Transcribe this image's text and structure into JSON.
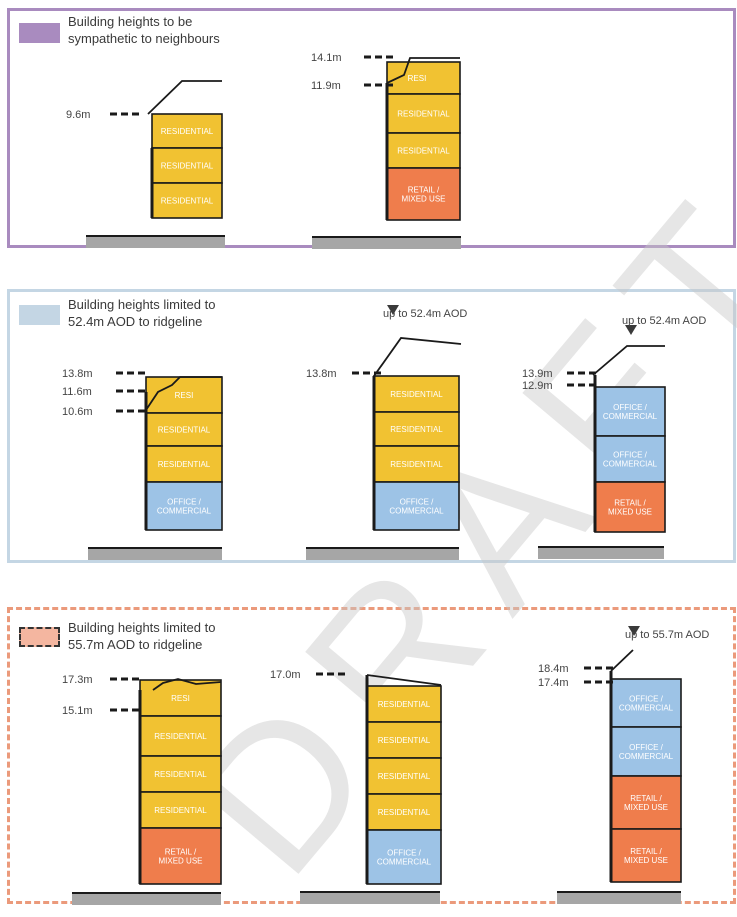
{
  "colors": {
    "residential": "#f1c232",
    "office": "#9dc3e6",
    "retail": "#ef7d4c",
    "ground": "#a6a6a6",
    "outline": "#1a1a1a",
    "panel1": "#a98bbf",
    "panel2": "#c4d6e4",
    "panel3": "#eb9a7b",
    "key3": "#f4b6a0",
    "watermark": "#c8c8c8"
  },
  "watermark": "DRAFT",
  "panels": [
    {
      "legend": "Building heights to be\nsympathetic to neighbours",
      "buildings": [
        {
          "floors": [
            "RESIDENTIAL",
            "RESIDENTIAL",
            "RESIDENTIAL"
          ],
          "types": [
            "residential",
            "residential",
            "residential"
          ],
          "markers": [
            "9.6m"
          ]
        },
        {
          "floors": [
            "RESI",
            "RESIDENTIAL",
            "RESIDENTIAL",
            "RETAIL /\nMIXED USE"
          ],
          "types": [
            "residential",
            "residential",
            "residential",
            "retail"
          ],
          "markers": [
            "14.1m",
            "11.9m"
          ]
        }
      ]
    },
    {
      "legend": "Building heights limited to\n52.4m AOD to ridgeline",
      "buildings": [
        {
          "floors": [
            "RESI",
            "RESIDENTIAL",
            "RESIDENTIAL",
            "OFFICE /\nCOMMERCIAL"
          ],
          "types": [
            "residential",
            "residential",
            "residential",
            "office"
          ],
          "markers": [
            "13.8m",
            "11.6m",
            "10.6m"
          ]
        },
        {
          "floors": [
            "RESIDENTIAL",
            "RESIDENTIAL",
            "RESIDENTIAL",
            "OFFICE /\nCOMMERCIAL"
          ],
          "types": [
            "residential",
            "residential",
            "residential",
            "office"
          ],
          "markers": [
            "13.8m"
          ],
          "aod": "up to 52.4m AOD"
        },
        {
          "floors": [
            "OFFICE /\nCOMMERCIAL",
            "OFFICE /\nCOMMERCIAL",
            "RETAIL /\nMIXED USE"
          ],
          "types": [
            "office",
            "office",
            "retail"
          ],
          "markers": [
            "13.9m",
            "12.9m"
          ],
          "aod": "up to 52.4m AOD"
        }
      ]
    },
    {
      "legend": "Building heights limited to\n55.7m AOD to ridgeline",
      "buildings": [
        {
          "floors": [
            "RESI",
            "RESIDENTIAL",
            "RESIDENTIAL",
            "RESIDENTIAL",
            "RETAIL /\nMIXED USE"
          ],
          "types": [
            "residential",
            "residential",
            "residential",
            "residential",
            "retail"
          ],
          "markers": [
            "17.3m",
            "15.1m"
          ]
        },
        {
          "floors": [
            "RESIDENTIAL",
            "RESIDENTIAL",
            "RESIDENTIAL",
            "RESIDENTIAL",
            "OFFICE /\nCOMMERCIAL"
          ],
          "types": [
            "residential",
            "residential",
            "residential",
            "residential",
            "office"
          ],
          "markers": [
            "17.0m"
          ]
        },
        {
          "floors": [
            "OFFICE /\nCOMMERCIAL",
            "OFFICE /\nCOMMERCIAL",
            "RETAIL /\nMIXED USE",
            "RETAIL /\nMIXED USE"
          ],
          "types": [
            "office",
            "office",
            "retail",
            "retail"
          ],
          "markers": [
            "18.4m",
            "17.4m"
          ],
          "aod": "up to 55.7m AOD"
        }
      ]
    }
  ]
}
